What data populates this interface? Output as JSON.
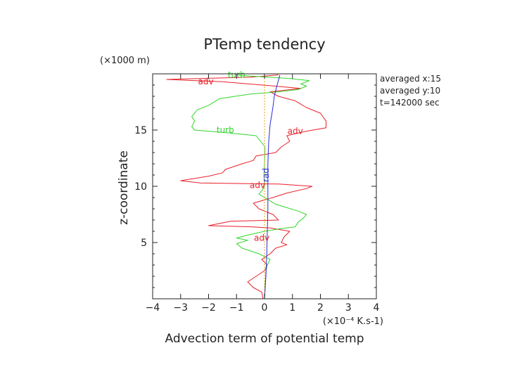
{
  "chart_data": {
    "type": "line",
    "title": "PTemp tendency",
    "xlabel": "Advection term of potential temp",
    "ylabel": "z-coordinate",
    "x_unit": "(×10⁻⁴ K.s-1)",
    "y_unit": "(×1000 m)",
    "xlim": [
      -4,
      4
    ],
    "ylim": [
      0,
      20
    ],
    "x_ticks": [
      -4,
      -3,
      -2,
      -1,
      0,
      1,
      2,
      3,
      4
    ],
    "y_ticks": [
      5,
      10,
      15
    ],
    "grid": false,
    "info_text": [
      "averaged  x:15",
      "averaged  y:10",
      "t=142000 sec"
    ],
    "series": [
      {
        "name": "adv",
        "color": "#e8202a",
        "points": [
          [
            -0.05,
            0.0
          ],
          [
            -0.1,
            0.6
          ],
          [
            -0.4,
            1.0
          ],
          [
            -0.6,
            1.5
          ],
          [
            -0.3,
            2.0
          ],
          [
            0.0,
            2.5
          ],
          [
            0.1,
            3.0
          ],
          [
            -0.1,
            3.5
          ],
          [
            0.2,
            4.0
          ],
          [
            0.4,
            4.5
          ],
          [
            0.8,
            4.8
          ],
          [
            0.6,
            5.0
          ],
          [
            0.7,
            5.5
          ],
          [
            0.9,
            6.0
          ],
          [
            0.2,
            6.3
          ],
          [
            -0.5,
            6.4
          ],
          [
            -2.0,
            6.5
          ],
          [
            -1.2,
            6.9
          ],
          [
            0.5,
            7.0
          ],
          [
            0.3,
            7.5
          ],
          [
            -0.2,
            8.0
          ],
          [
            -0.4,
            8.5
          ],
          [
            0.3,
            9.0
          ],
          [
            0.8,
            9.4
          ],
          [
            1.5,
            9.8
          ],
          [
            1.7,
            10.0
          ],
          [
            0.5,
            10.2
          ],
          [
            -2.3,
            10.3
          ],
          [
            -3.0,
            10.5
          ],
          [
            -2.0,
            10.9
          ],
          [
            -1.5,
            11.2
          ],
          [
            -1.4,
            11.5
          ],
          [
            -0.8,
            12.0
          ],
          [
            -0.4,
            12.3
          ],
          [
            -0.3,
            12.7
          ],
          [
            0.4,
            13.0
          ],
          [
            0.6,
            13.5
          ],
          [
            0.9,
            14.0
          ],
          [
            0.8,
            14.5
          ],
          [
            1.5,
            14.9
          ],
          [
            2.2,
            15.2
          ],
          [
            2.2,
            15.8
          ],
          [
            2.0,
            16.5
          ],
          [
            1.5,
            17.0
          ],
          [
            1.1,
            17.6
          ],
          [
            0.5,
            18.0
          ],
          [
            0.2,
            18.4
          ],
          [
            1.3,
            18.7
          ],
          [
            0.4,
            18.9
          ],
          [
            -1.5,
            19.3
          ],
          [
            -3.5,
            19.5
          ],
          [
            -2.0,
            19.6
          ],
          [
            -0.5,
            19.7
          ],
          [
            0.5,
            19.9
          ]
        ]
      },
      {
        "name": "turb",
        "color": "#31d62c",
        "points": [
          [
            0.0,
            0.0
          ],
          [
            0.02,
            1.0
          ],
          [
            0.05,
            2.5
          ],
          [
            0.1,
            3.0
          ],
          [
            0.2,
            3.5
          ],
          [
            -0.2,
            4.0
          ],
          [
            -0.8,
            4.5
          ],
          [
            -1.0,
            4.9
          ],
          [
            -0.6,
            5.2
          ],
          [
            -1.0,
            5.4
          ],
          [
            -0.7,
            5.6
          ],
          [
            0.0,
            6.0
          ],
          [
            0.5,
            6.2
          ],
          [
            1.1,
            6.4
          ],
          [
            1.2,
            6.8
          ],
          [
            1.4,
            7.2
          ],
          [
            1.5,
            7.5
          ],
          [
            1.2,
            7.8
          ],
          [
            0.8,
            8.1
          ],
          [
            0.4,
            8.4
          ],
          [
            0.2,
            8.7
          ],
          [
            0.0,
            9.0
          ],
          [
            -0.2,
            9.3
          ],
          [
            -0.1,
            9.6
          ],
          [
            0.0,
            10.0
          ],
          [
            -0.02,
            11.0
          ],
          [
            0.0,
            12.0
          ],
          [
            0.02,
            13.5
          ],
          [
            -0.3,
            14.5
          ],
          [
            -1.5,
            14.8
          ],
          [
            -2.5,
            15.0
          ],
          [
            -2.6,
            15.3
          ],
          [
            -2.5,
            15.8
          ],
          [
            -2.6,
            16.2
          ],
          [
            -2.4,
            16.8
          ],
          [
            -2.0,
            17.2
          ],
          [
            -1.6,
            17.8
          ],
          [
            -0.5,
            18.2
          ],
          [
            0.5,
            18.4
          ],
          [
            1.2,
            18.6
          ],
          [
            1.5,
            18.9
          ],
          [
            1.3,
            19.1
          ],
          [
            1.6,
            19.4
          ],
          [
            0.8,
            19.6
          ],
          [
            -0.5,
            19.8
          ],
          [
            -1.0,
            19.9
          ]
        ]
      },
      {
        "name": "rad",
        "color": "#2b2bd9",
        "points": [
          [
            0.0,
            0.0
          ],
          [
            0.05,
            2.0
          ],
          [
            0.08,
            4.0
          ],
          [
            0.1,
            6.0
          ],
          [
            0.12,
            8.0
          ],
          [
            0.12,
            10.0
          ],
          [
            0.12,
            12.0
          ],
          [
            0.15,
            14.0
          ],
          [
            0.2,
            15.5
          ],
          [
            0.3,
            17.0
          ],
          [
            0.35,
            18.0
          ],
          [
            0.45,
            19.0
          ],
          [
            0.55,
            19.9
          ]
        ]
      },
      {
        "name": "",
        "color": "#e8a020",
        "dashed": true,
        "points": [
          [
            0.0,
            0.0
          ],
          [
            0.0,
            5.0
          ],
          [
            0.0,
            10.0
          ],
          [
            0.0,
            15.0
          ],
          [
            0.0,
            19.9
          ]
        ]
      }
    ],
    "annotations": [
      {
        "text": "turb",
        "series": "turb",
        "x": -1.0,
        "y": 19.9
      },
      {
        "text": "adv",
        "series": "adv",
        "x": -2.1,
        "y": 19.3
      },
      {
        "text": "turb",
        "series": "turb",
        "x": -1.4,
        "y": 15.0
      },
      {
        "text": "adv",
        "series": "adv",
        "x": 1.1,
        "y": 14.9
      },
      {
        "text": "rad",
        "series": "rad",
        "x": 0.05,
        "y": 11.0
      },
      {
        "text": "adv",
        "series": "adv",
        "x": -0.25,
        "y": 10.1
      },
      {
        "text": "adv",
        "series": "adv",
        "x": -0.1,
        "y": 5.4
      }
    ]
  }
}
